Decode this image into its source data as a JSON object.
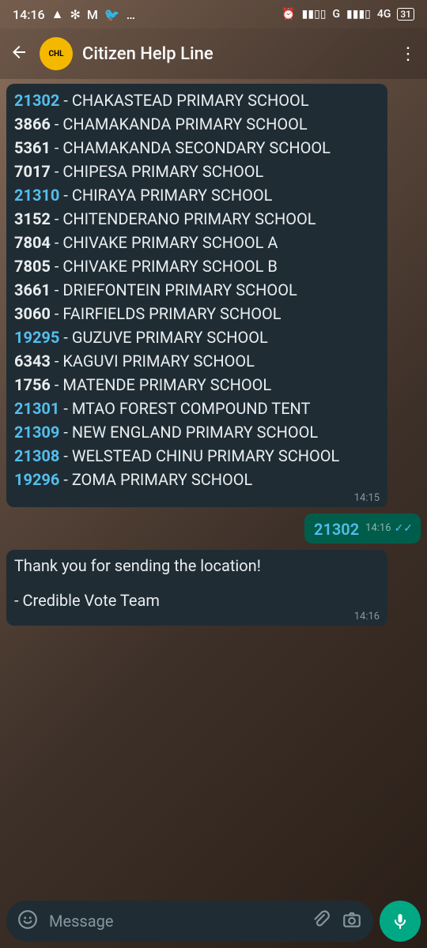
{
  "status": {
    "time": "14:16",
    "left_icons": [
      "▲",
      "✻",
      "M",
      "🐦",
      "…"
    ],
    "alarm_icon": "⏰",
    "signal_label_1": "G",
    "signal_label_2": "4G",
    "battery_pct": "31"
  },
  "header": {
    "title": "Citizen Help Line",
    "avatar_text": "CHL"
  },
  "colors": {
    "link": "#53bdeb",
    "bubble_in": "#1f2c34",
    "bubble_out": "#005d4b",
    "accent": "#00a884",
    "muted": "#8696a0",
    "text": "#e9edef"
  },
  "list_message": {
    "time": "14:15",
    "items": [
      {
        "code": "21302",
        "link": true,
        "name": "CHAKASTEAD PRIMARY SCHOOL"
      },
      {
        "code": "3866",
        "link": false,
        "name": "CHAMAKANDA PRIMARY SCHOOL"
      },
      {
        "code": "5361",
        "link": false,
        "name": "CHAMAKANDA SECONDARY SCHOOL"
      },
      {
        "code": "7017",
        "link": false,
        "name": "CHIPESA PRIMARY SCHOOL"
      },
      {
        "code": "21310",
        "link": true,
        "name": "CHIRAYA PRIMARY SCHOOL"
      },
      {
        "code": "3152",
        "link": false,
        "name": "CHITENDERANO PRIMARY SCHOOL"
      },
      {
        "code": "7804",
        "link": false,
        "name": "CHIVAKE PRIMARY SCHOOL A"
      },
      {
        "code": "7805",
        "link": false,
        "name": "CHIVAKE PRIMARY SCHOOL B"
      },
      {
        "code": "3661",
        "link": false,
        "name": "DRIEFONTEIN PRIMARY SCHOOL"
      },
      {
        "code": "3060",
        "link": false,
        "name": "FAIRFIELDS PRIMARY SCHOOL"
      },
      {
        "code": "19295",
        "link": true,
        "name": "GUZUVE PRIMARY SCHOOL"
      },
      {
        "code": "6343",
        "link": false,
        "name": "KAGUVI PRIMARY SCHOOL"
      },
      {
        "code": "1756",
        "link": false,
        "name": "MATENDE PRIMARY SCHOOL"
      },
      {
        "code": "21301",
        "link": true,
        "name": "MTAO FOREST COMPOUND TENT"
      },
      {
        "code": "21309",
        "link": true,
        "name": "NEW ENGLAND PRIMARY SCHOOL"
      },
      {
        "code": "21308",
        "link": true,
        "name": "WELSTEAD CHINU PRIMARY SCHOOL"
      },
      {
        "code": "19296",
        "link": true,
        "name": "ZOMA PRIMARY SCHOOL"
      }
    ]
  },
  "sent_message": {
    "text": "21302",
    "time": "14:16"
  },
  "reply_message": {
    "line1": "Thank you for sending the location!",
    "line2": " - Credible Vote Team",
    "time": "14:16"
  },
  "input": {
    "placeholder": "Message"
  }
}
